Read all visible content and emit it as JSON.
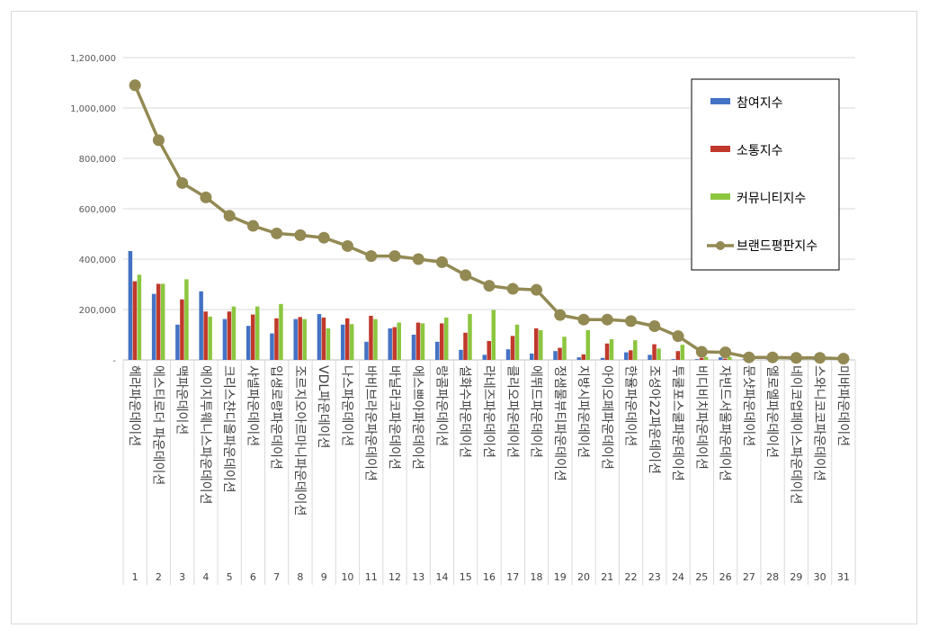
{
  "chart_data": {
    "type": "bar",
    "title": "",
    "xlabel": "",
    "ylabel": "",
    "ylim": [
      0,
      1200000
    ],
    "yticks": [
      "-",
      "200,000",
      "400,000",
      "600,000",
      "800,000",
      "1,000,000",
      "1,200,000"
    ],
    "grid": true,
    "legend_position": "right",
    "categories": [
      "헤라파운데이션",
      "에스티로더 파운데이션",
      "맥파운데이션",
      "에이지투웨니스파운데이션",
      "크리스챤디올파운데이션",
      "샤넬파운데이션",
      "입생로랑파운데이션",
      "조르지오아르마니파운데이션",
      "VDL파운데이션",
      "나스파운데이션",
      "바비브라운파운데이션",
      "바닐라코파운데이션",
      "에스쁘아파운데이션",
      "랑콤파운데이션",
      "설화수파운데이션",
      "라네즈파운데이션",
      "클리오파운데이션",
      "에뛰드파운데이션",
      "정샘물뷰티파운데이션",
      "지방시파운데이션",
      "아이오페파운데이션",
      "한율파운데이션",
      "조성아22파운데이션",
      "투쿨포스쿨파운데이션",
      "비디비치파운데이션",
      "자빈드서울파운데이션",
      "문샷파운데이션",
      "엘로엘파운데이션",
      "네이코업페이스파운데이션",
      "스와니코코파운데이션",
      "미바파운데이션"
    ],
    "ranks": [
      "1",
      "2",
      "3",
      "4",
      "5",
      "6",
      "7",
      "8",
      "9",
      "10",
      "11",
      "12",
      "13",
      "14",
      "15",
      "16",
      "17",
      "18",
      "19",
      "20",
      "21",
      "22",
      "23",
      "24",
      "25",
      "26",
      "27",
      "28",
      "29",
      "30",
      "31"
    ],
    "series": [
      {
        "name": "참여지수",
        "kind": "bar",
        "color": "#4472c4",
        "values": [
          432000,
          262000,
          140000,
          272000,
          162000,
          135000,
          105000,
          162000,
          182000,
          140000,
          72000,
          125000,
          100000,
          72000,
          40000,
          20000,
          42000,
          25000,
          35000,
          10000,
          8000,
          30000,
          20000,
          3000,
          3000,
          10000,
          2000,
          2000,
          2000,
          2000,
          2000
        ]
      },
      {
        "name": "소통지수",
        "kind": "bar",
        "color": "#c0392b",
        "values": [
          312000,
          302000,
          240000,
          192000,
          192000,
          180000,
          165000,
          170000,
          168000,
          165000,
          175000,
          130000,
          148000,
          145000,
          108000,
          75000,
          95000,
          125000,
          48000,
          22000,
          65000,
          38000,
          62000,
          35000,
          8000,
          5000,
          2000,
          2000,
          2000,
          2000,
          2000
        ]
      },
      {
        "name": "커뮤니티지수",
        "kind": "bar",
        "color": "#8cc63f",
        "values": [
          338000,
          302000,
          320000,
          172000,
          212000,
          212000,
          222000,
          162000,
          125000,
          142000,
          162000,
          148000,
          145000,
          168000,
          182000,
          198000,
          140000,
          118000,
          92000,
          118000,
          82000,
          78000,
          45000,
          60000,
          12000,
          12000,
          3000,
          3000,
          3000,
          3000,
          3000
        ]
      },
      {
        "name": "브랜드평판지수",
        "kind": "line",
        "color": "#938953",
        "values": [
          1090000,
          872000,
          702000,
          645000,
          572000,
          532000,
          502000,
          495000,
          485000,
          452000,
          412000,
          412000,
          400000,
          388000,
          336000,
          294000,
          282000,
          278000,
          178000,
          160000,
          160000,
          154000,
          134000,
          94000,
          32000,
          30000,
          10000,
          10000,
          8000,
          8000,
          5000
        ]
      }
    ]
  }
}
